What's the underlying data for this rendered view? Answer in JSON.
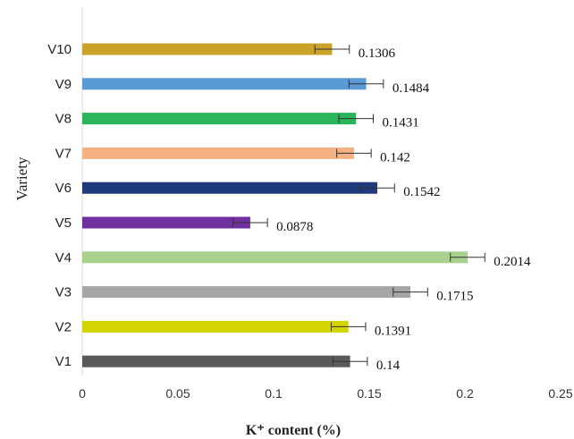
{
  "chart_data": {
    "type": "bar",
    "orientation": "horizontal",
    "title": "",
    "xlabel": "K⁺ content (%)",
    "ylabel": "Variety",
    "xlim": [
      0,
      0.25
    ],
    "x_ticks": [
      "0",
      "0.05",
      "0.1",
      "0.15",
      "0.2",
      "0.25"
    ],
    "categories": [
      "V1",
      "V2",
      "V3",
      "V4",
      "V5",
      "V6",
      "V7",
      "V8",
      "V9",
      "V10"
    ],
    "values": [
      0.14,
      0.1391,
      0.1715,
      0.2014,
      0.0878,
      0.1542,
      0.142,
      0.1431,
      0.1484,
      0.1306
    ],
    "data_labels": [
      "0.14",
      "0.1391",
      "0.1715",
      "0.2014",
      "0.0878",
      "0.1542",
      "0.142",
      "0.1431",
      "0.1484",
      "0.1306"
    ],
    "errors": [
      0.009,
      0.009,
      0.009,
      0.009,
      0.009,
      0.009,
      0.009,
      0.009,
      0.009,
      0.009
    ],
    "colors": [
      "#595959",
      "#d4d400",
      "#a6a6a6",
      "#a9d18e",
      "#7030a0",
      "#1f3a7a",
      "#f4b183",
      "#2bb55a",
      "#5b9bd5",
      "#c9a227"
    ],
    "grid": false,
    "legend": "none"
  }
}
